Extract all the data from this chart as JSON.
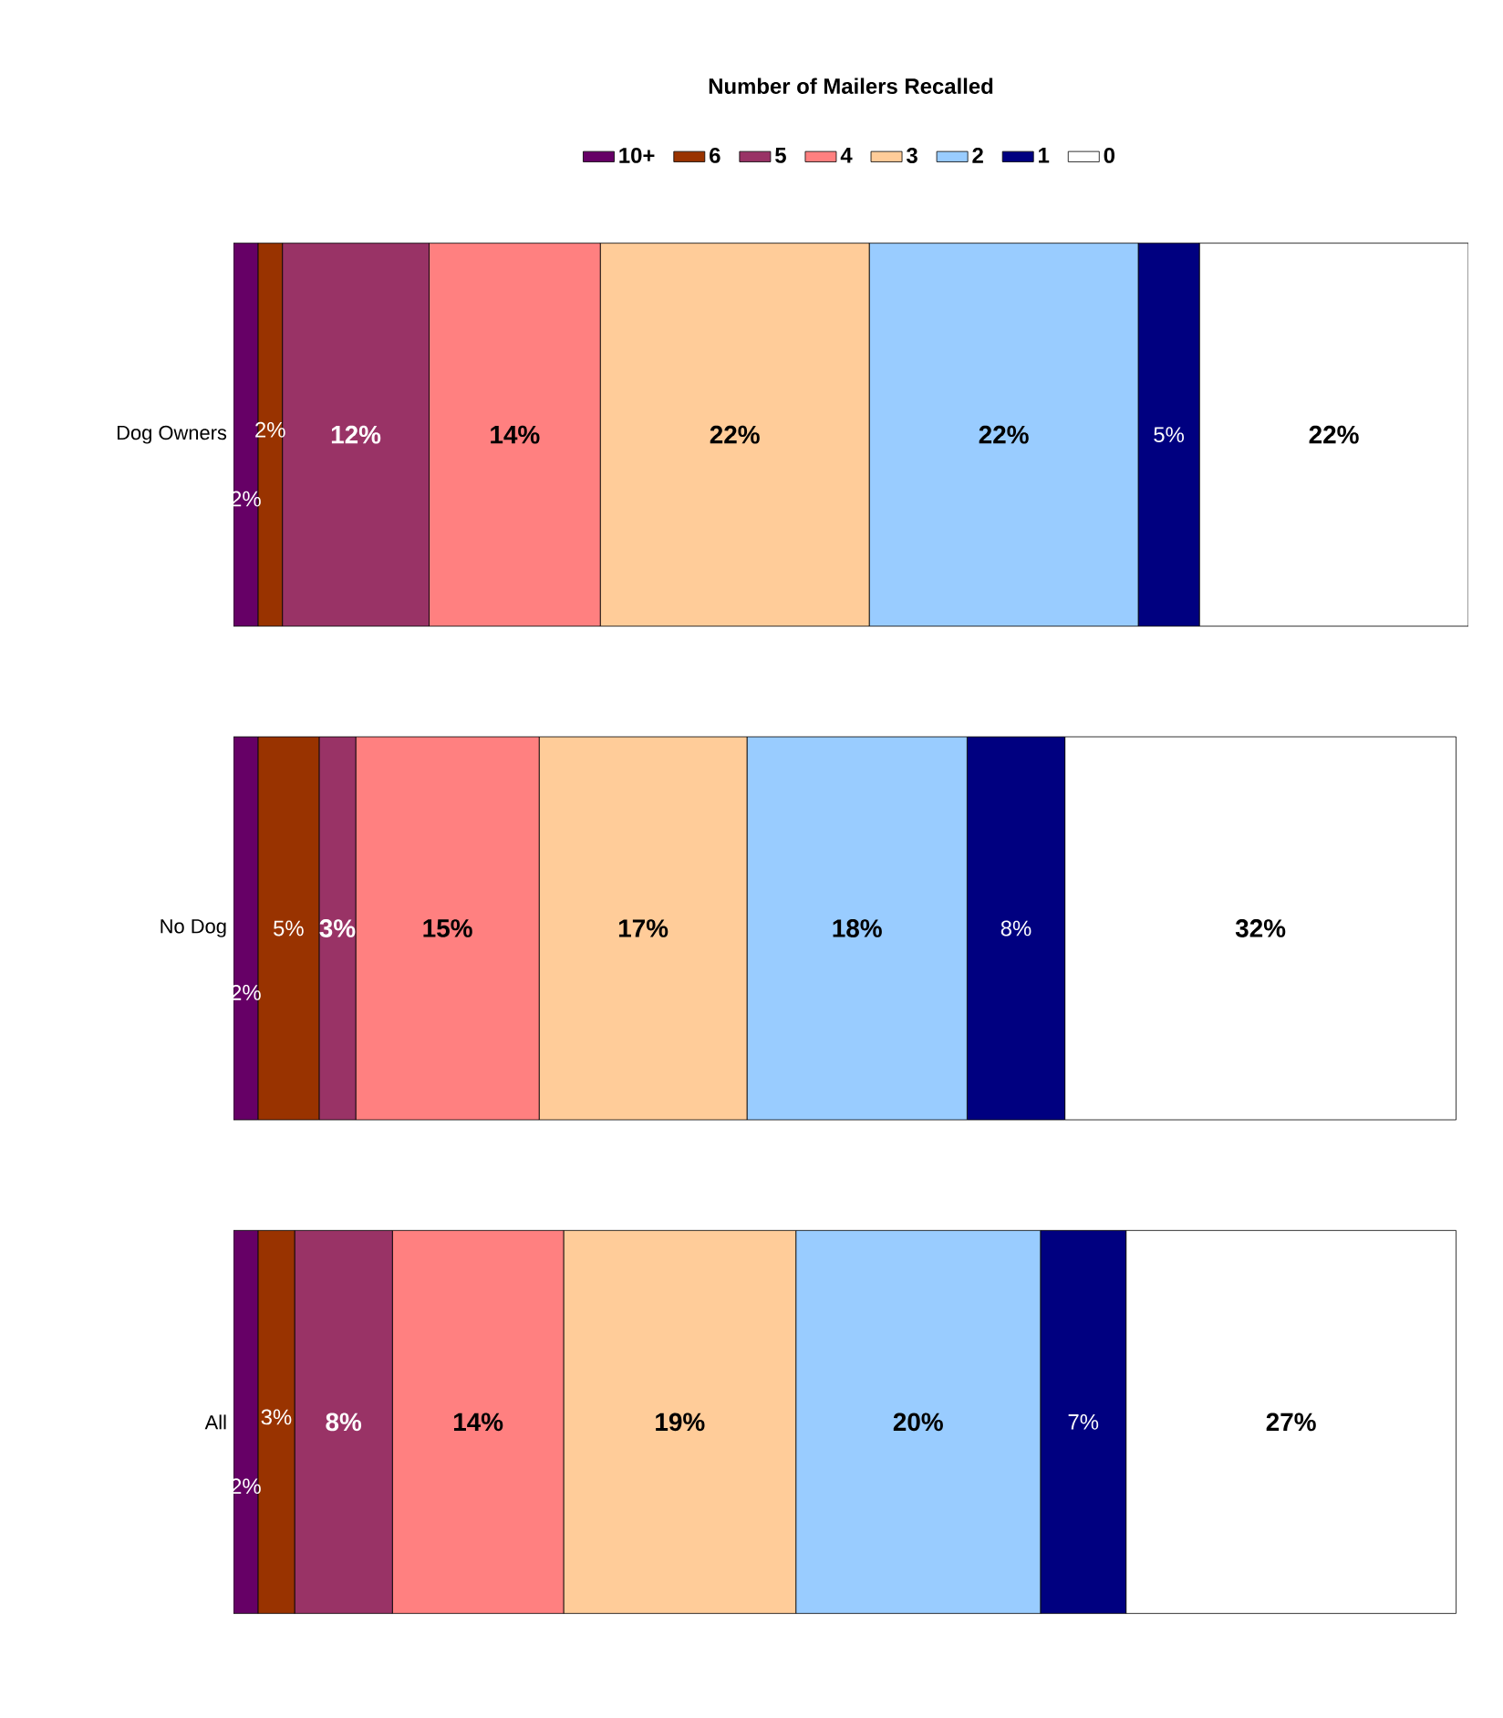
{
  "chart_data": {
    "type": "bar",
    "orientation": "horizontal",
    "stacked": true,
    "title": "Number of Mailers Recalled",
    "legend": "top",
    "categories": [
      "Dog Owners",
      "No Dog",
      "All"
    ],
    "series": [
      {
        "name": "10+",
        "color": "#660066",
        "values": [
          2,
          2,
          2
        ],
        "value_labels": [
          "2%",
          "2%",
          "2%"
        ]
      },
      {
        "name": "6",
        "color": "#993300",
        "values": [
          2,
          5,
          3
        ],
        "value_labels": [
          "2%",
          "5%",
          "3%"
        ]
      },
      {
        "name": "5",
        "color": "#993366",
        "values": [
          12,
          3,
          8
        ],
        "value_labels": [
          "12%",
          "3%",
          "8%"
        ]
      },
      {
        "name": "4",
        "color": "#ff8080",
        "values": [
          14,
          15,
          14
        ],
        "value_labels": [
          "14%",
          "15%",
          "14%"
        ]
      },
      {
        "name": "3",
        "color": "#ffcc99",
        "values": [
          22,
          17,
          19
        ],
        "value_labels": [
          "22%",
          "17%",
          "19%"
        ]
      },
      {
        "name": "2",
        "color": "#99ccff",
        "values": [
          22,
          18,
          20
        ],
        "value_labels": [
          "22%",
          "18%",
          "20%"
        ]
      },
      {
        "name": "1",
        "color": "#000080",
        "values": [
          5,
          8,
          7
        ],
        "value_labels": [
          "5%",
          "8%",
          "7%"
        ]
      },
      {
        "name": "0",
        "color": "#ffffff",
        "values": [
          22,
          32,
          27
        ],
        "value_labels": [
          "22%",
          "32%",
          "27%"
        ]
      }
    ]
  }
}
